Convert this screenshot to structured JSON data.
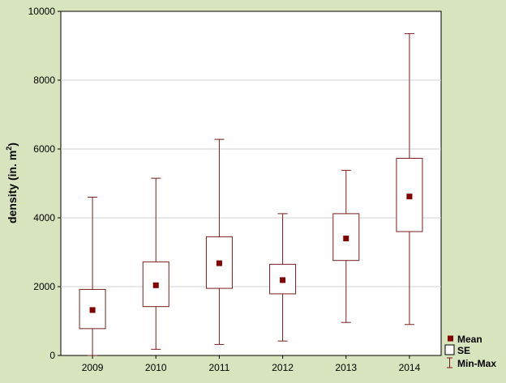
{
  "chart_data": {
    "type": "boxplot",
    "title": "",
    "xlabel": "",
    "ylabel": "density (in. m",
    "ylabel_sup": "2",
    "ylabel_close": ")",
    "ylim": [
      0,
      10000
    ],
    "yticks": [
      0,
      2000,
      4000,
      6000,
      8000,
      10000
    ],
    "grid": true,
    "legend_position": "bottom-right",
    "colors": {
      "series": "#7b1c1c",
      "mean_marker": "#800000",
      "background": "#d7e4bd",
      "plot_area": "#ffffff",
      "grid": "#d0d0d0"
    },
    "categories": [
      "2009",
      "2010",
      "2011",
      "2012",
      "2013",
      "2014"
    ],
    "boxes": [
      {
        "category": "2009",
        "mean": 1320,
        "se_low": 780,
        "se_high": 1920,
        "min": 0,
        "max": 4600
      },
      {
        "category": "2010",
        "mean": 2040,
        "se_low": 1420,
        "se_high": 2720,
        "min": 180,
        "max": 5150
      },
      {
        "category": "2011",
        "mean": 2680,
        "se_low": 1950,
        "se_high": 3450,
        "min": 320,
        "max": 6280
      },
      {
        "category": "2012",
        "mean": 2190,
        "se_low": 1790,
        "se_high": 2650,
        "min": 420,
        "max": 4120
      },
      {
        "category": "2013",
        "mean": 3400,
        "se_low": 2760,
        "se_high": 4120,
        "min": 960,
        "max": 5380
      },
      {
        "category": "2014",
        "mean": 4620,
        "se_low": 3600,
        "se_high": 5730,
        "min": 900,
        "max": 9350
      }
    ],
    "legend": [
      {
        "key": "mean",
        "label": "Mean"
      },
      {
        "key": "se",
        "label": "SE"
      },
      {
        "key": "minmax",
        "label": "Min-Max"
      }
    ]
  }
}
